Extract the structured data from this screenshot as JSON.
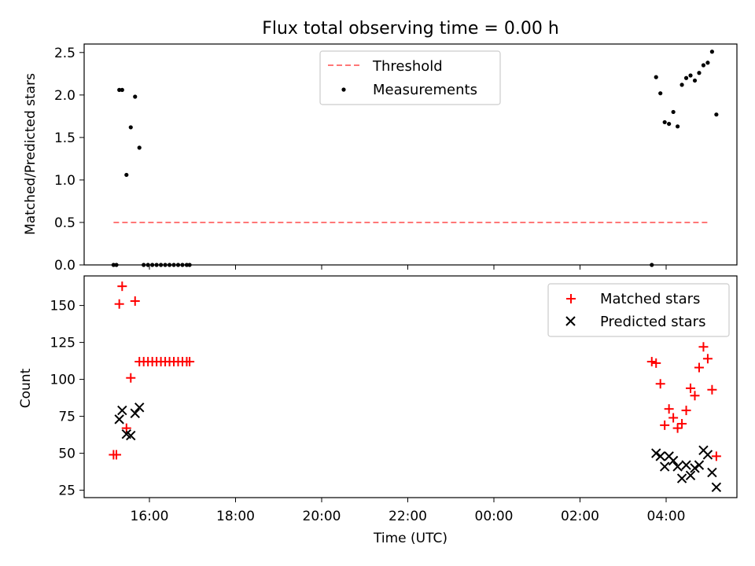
{
  "chart_data": [
    {
      "type": "scatter",
      "title": "Flux total observing time = 0.00 h",
      "ylabel": "Matched/Predicted stars",
      "xlabel": "",
      "ylim": [
        0,
        2.6
      ],
      "yticks": [
        0.0,
        0.5,
        1.0,
        1.5,
        2.0,
        2.5
      ],
      "ytick_labels": [
        "0.0",
        "0.5",
        "1.0",
        "1.5",
        "2.0",
        "2.5"
      ],
      "legend": {
        "position": "top-center",
        "entries": [
          "Threshold",
          "Measurements"
        ]
      },
      "threshold": {
        "name": "Threshold",
        "y": 0.5,
        "x_start": "15:10",
        "x_end": "05:00",
        "color": "#ff7777",
        "style": "dashed"
      },
      "series": [
        {
          "name": "Measurements",
          "color": "#000000",
          "marker": "dot",
          "points": [
            [
              "15:10",
              0.0
            ],
            [
              "15:14",
              0.0
            ],
            [
              "15:18",
              2.06
            ],
            [
              "15:22",
              2.06
            ],
            [
              "15:28",
              1.06
            ],
            [
              "15:34",
              1.62
            ],
            [
              "15:40",
              1.98
            ],
            [
              "15:46",
              1.38
            ],
            [
              "15:52",
              0.0
            ],
            [
              "15:58",
              0.0
            ],
            [
              "16:04",
              0.0
            ],
            [
              "16:10",
              0.0
            ],
            [
              "16:16",
              0.0
            ],
            [
              "16:22",
              0.0
            ],
            [
              "16:28",
              0.0
            ],
            [
              "16:34",
              0.0
            ],
            [
              "16:40",
              0.0
            ],
            [
              "16:46",
              0.0
            ],
            [
              "16:52",
              0.0
            ],
            [
              "16:56",
              0.0
            ],
            [
              "03:40",
              0.0
            ],
            [
              "03:46",
              2.21
            ],
            [
              "03:52",
              2.02
            ],
            [
              "03:58",
              1.68
            ],
            [
              "04:04",
              1.66
            ],
            [
              "04:10",
              1.8
            ],
            [
              "04:16",
              1.63
            ],
            [
              "04:22",
              2.12
            ],
            [
              "04:28",
              2.2
            ],
            [
              "04:34",
              2.23
            ],
            [
              "04:40",
              2.17
            ],
            [
              "04:46",
              2.26
            ],
            [
              "04:52",
              2.35
            ],
            [
              "04:58",
              2.38
            ],
            [
              "05:04",
              2.51
            ],
            [
              "05:10",
              1.77
            ]
          ]
        }
      ]
    },
    {
      "type": "scatter",
      "title": "",
      "ylabel": "Count",
      "xlabel": "Time (UTC)",
      "ylim": [
        20,
        170
      ],
      "yticks": [
        25,
        50,
        75,
        100,
        125,
        150
      ],
      "ytick_labels": [
        "25",
        "50",
        "75",
        "100",
        "125",
        "150"
      ],
      "xticks": [
        "16:00",
        "18:00",
        "20:00",
        "22:00",
        "00:00",
        "02:00",
        "04:00"
      ],
      "legend": {
        "position": "top-right",
        "entries": [
          "Matched stars",
          "Predicted stars"
        ]
      },
      "series": [
        {
          "name": "Matched stars",
          "color": "#ff0000",
          "marker": "plus",
          "points": [
            [
              "15:10",
              49
            ],
            [
              "15:14",
              49
            ],
            [
              "15:18",
              151
            ],
            [
              "15:22",
              163
            ],
            [
              "15:28",
              67
            ],
            [
              "15:34",
              101
            ],
            [
              "15:40",
              153
            ],
            [
              "15:46",
              112
            ],
            [
              "15:52",
              112
            ],
            [
              "15:58",
              112
            ],
            [
              "16:04",
              112
            ],
            [
              "16:10",
              112
            ],
            [
              "16:16",
              112
            ],
            [
              "16:22",
              112
            ],
            [
              "16:28",
              112
            ],
            [
              "16:34",
              112
            ],
            [
              "16:40",
              112
            ],
            [
              "16:46",
              112
            ],
            [
              "16:52",
              112
            ],
            [
              "16:56",
              112
            ],
            [
              "03:40",
              112
            ],
            [
              "03:46",
              111
            ],
            [
              "03:52",
              97
            ],
            [
              "03:58",
              69
            ],
            [
              "04:04",
              80
            ],
            [
              "04:10",
              74
            ],
            [
              "04:16",
              67
            ],
            [
              "04:22",
              70
            ],
            [
              "04:28",
              79
            ],
            [
              "04:34",
              94
            ],
            [
              "04:40",
              89
            ],
            [
              "04:46",
              108
            ],
            [
              "04:52",
              122
            ],
            [
              "04:58",
              114
            ],
            [
              "05:04",
              93
            ],
            [
              "05:10",
              48
            ]
          ]
        },
        {
          "name": "Predicted stars",
          "color": "#000000",
          "marker": "x",
          "points": [
            [
              "15:18",
              73
            ],
            [
              "15:22",
              79
            ],
            [
              "15:28",
              63
            ],
            [
              "15:34",
              62
            ],
            [
              "15:40",
              77
            ],
            [
              "15:46",
              81
            ],
            [
              "03:46",
              50
            ],
            [
              "03:52",
              48
            ],
            [
              "03:58",
              41
            ],
            [
              "04:04",
              48
            ],
            [
              "04:10",
              45
            ],
            [
              "04:16",
              41
            ],
            [
              "04:22",
              33
            ],
            [
              "04:28",
              42
            ],
            [
              "04:34",
              35
            ],
            [
              "04:40",
              40
            ],
            [
              "04:46",
              42
            ],
            [
              "04:52",
              52
            ],
            [
              "04:58",
              49
            ],
            [
              "05:04",
              37
            ],
            [
              "05:10",
              27
            ]
          ]
        }
      ]
    }
  ]
}
